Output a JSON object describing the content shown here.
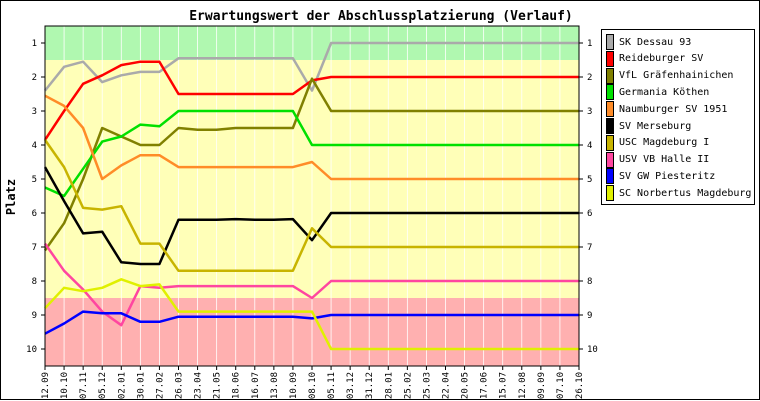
{
  "chart_data": {
    "type": "line",
    "title": "Erwartungswert der Abschlussplatzierung (Verlauf)",
    "ylabel": "Platz",
    "xlabel": "",
    "ylim": [
      0.5,
      10.5
    ],
    "y_reversed": true,
    "y_ticks": [
      "1",
      "2",
      "3",
      "4",
      "5",
      "6",
      "7",
      "8",
      "9",
      "10"
    ],
    "x": [
      "12.09",
      "10.10",
      "07.11",
      "05.12",
      "02.01",
      "30.01",
      "27.02",
      "26.03",
      "23.04",
      "21.05",
      "18.06",
      "16.07",
      "13.08",
      "10.09",
      "08.10",
      "05.11",
      "03.12",
      "31.12",
      "28.01",
      "25.02",
      "25.03",
      "22.04",
      "20.05",
      "17.06",
      "15.07",
      "12.08",
      "09.09",
      "07.10",
      "26.10"
    ],
    "bands": [
      {
        "from": 0.5,
        "to": 1.5,
        "color": "#b0f8b0"
      },
      {
        "from": 1.5,
        "to": 8.5,
        "color": "#ffffb8"
      },
      {
        "from": 8.5,
        "to": 10.5,
        "color": "#ffb0b0"
      }
    ],
    "legend_position": "right",
    "series": [
      {
        "name": "SK Dessau 93",
        "color": "#aaaaaa",
        "points": [
          [
            0,
            2.4
          ],
          [
            1,
            1.7
          ],
          [
            2,
            1.55
          ],
          [
            3,
            2.15
          ],
          [
            4,
            1.95
          ],
          [
            5,
            1.85
          ],
          [
            6,
            1.85
          ],
          [
            7,
            1.45
          ],
          [
            8,
            1.45
          ],
          [
            9,
            1.45
          ],
          [
            10,
            1.45
          ],
          [
            11,
            1.45
          ],
          [
            12,
            1.45
          ],
          [
            13,
            1.45
          ],
          [
            14,
            2.4
          ],
          [
            15,
            1.0
          ],
          [
            16,
            1.0
          ],
          [
            17,
            1.0
          ],
          [
            18,
            1.0
          ],
          [
            19,
            1.0
          ],
          [
            20,
            1.0
          ],
          [
            21,
            1.0
          ],
          [
            22,
            1.0
          ],
          [
            23,
            1.0
          ],
          [
            24,
            1.0
          ],
          [
            25,
            1.0
          ],
          [
            26,
            1.0
          ],
          [
            27,
            1.0
          ],
          [
            28,
            1.0
          ]
        ]
      },
      {
        "name": "Reideburger SV",
        "color": "#ff0000",
        "points": [
          [
            0,
            3.85
          ],
          [
            1,
            3.0
          ],
          [
            2,
            2.2
          ],
          [
            3,
            1.95
          ],
          [
            4,
            1.65
          ],
          [
            5,
            1.55
          ],
          [
            6,
            1.55
          ],
          [
            7,
            2.5
          ],
          [
            8,
            2.5
          ],
          [
            9,
            2.5
          ],
          [
            10,
            2.5
          ],
          [
            11,
            2.5
          ],
          [
            12,
            2.5
          ],
          [
            13,
            2.5
          ],
          [
            14,
            2.1
          ],
          [
            15,
            2.0
          ],
          [
            16,
            2.0
          ],
          [
            17,
            2.0
          ],
          [
            18,
            2.0
          ],
          [
            19,
            2.0
          ],
          [
            20,
            2.0
          ],
          [
            21,
            2.0
          ],
          [
            22,
            2.0
          ],
          [
            23,
            2.0
          ],
          [
            24,
            2.0
          ],
          [
            25,
            2.0
          ],
          [
            26,
            2.0
          ],
          [
            27,
            2.0
          ],
          [
            28,
            2.0
          ]
        ]
      },
      {
        "name": "VfL Gräfenhainichen",
        "color": "#808000",
        "points": [
          [
            0,
            7.1
          ],
          [
            1,
            6.3
          ],
          [
            2,
            5.0
          ],
          [
            3,
            3.5
          ],
          [
            4,
            3.75
          ],
          [
            5,
            4.0
          ],
          [
            6,
            4.0
          ],
          [
            7,
            3.5
          ],
          [
            8,
            3.55
          ],
          [
            9,
            3.55
          ],
          [
            10,
            3.5
          ],
          [
            11,
            3.5
          ],
          [
            12,
            3.5
          ],
          [
            13,
            3.5
          ],
          [
            14,
            2.05
          ],
          [
            15,
            3.0
          ],
          [
            16,
            3.0
          ],
          [
            17,
            3.0
          ],
          [
            18,
            3.0
          ],
          [
            19,
            3.0
          ],
          [
            20,
            3.0
          ],
          [
            21,
            3.0
          ],
          [
            22,
            3.0
          ],
          [
            23,
            3.0
          ],
          [
            24,
            3.0
          ],
          [
            25,
            3.0
          ],
          [
            26,
            3.0
          ],
          [
            27,
            3.0
          ],
          [
            28,
            3.0
          ]
        ]
      },
      {
        "name": "Germania Köthen",
        "color": "#00e000",
        "points": [
          [
            0,
            5.25
          ],
          [
            1,
            5.5
          ],
          [
            2,
            4.7
          ],
          [
            3,
            3.9
          ],
          [
            4,
            3.75
          ],
          [
            5,
            3.4
          ],
          [
            6,
            3.45
          ],
          [
            7,
            3.0
          ],
          [
            8,
            3.0
          ],
          [
            9,
            3.0
          ],
          [
            10,
            3.0
          ],
          [
            11,
            3.0
          ],
          [
            12,
            3.0
          ],
          [
            13,
            3.0
          ],
          [
            14,
            4.0
          ],
          [
            15,
            4.0
          ],
          [
            16,
            4.0
          ],
          [
            17,
            4.0
          ],
          [
            18,
            4.0
          ],
          [
            19,
            4.0
          ],
          [
            20,
            4.0
          ],
          [
            21,
            4.0
          ],
          [
            22,
            4.0
          ],
          [
            23,
            4.0
          ],
          [
            24,
            4.0
          ],
          [
            25,
            4.0
          ],
          [
            26,
            4.0
          ],
          [
            27,
            4.0
          ],
          [
            28,
            4.0
          ]
        ]
      },
      {
        "name": "Naumburger SV 1951",
        "color": "#ff8c28",
        "points": [
          [
            0,
            2.55
          ],
          [
            1,
            2.85
          ],
          [
            2,
            3.5
          ],
          [
            3,
            5.0
          ],
          [
            4,
            4.6
          ],
          [
            5,
            4.3
          ],
          [
            6,
            4.3
          ],
          [
            7,
            4.65
          ],
          [
            8,
            4.65
          ],
          [
            9,
            4.65
          ],
          [
            10,
            4.65
          ],
          [
            11,
            4.65
          ],
          [
            12,
            4.65
          ],
          [
            13,
            4.65
          ],
          [
            14,
            4.5
          ],
          [
            15,
            5.0
          ],
          [
            16,
            5.0
          ],
          [
            17,
            5.0
          ],
          [
            18,
            5.0
          ],
          [
            19,
            5.0
          ],
          [
            20,
            5.0
          ],
          [
            21,
            5.0
          ],
          [
            22,
            5.0
          ],
          [
            23,
            5.0
          ],
          [
            24,
            5.0
          ],
          [
            25,
            5.0
          ],
          [
            26,
            5.0
          ],
          [
            27,
            5.0
          ],
          [
            28,
            5.0
          ]
        ]
      },
      {
        "name": "SV Merseburg",
        "color": "#000000",
        "points": [
          [
            0,
            4.65
          ],
          [
            1,
            5.65
          ],
          [
            2,
            6.6
          ],
          [
            3,
            6.55
          ],
          [
            4,
            7.45
          ],
          [
            5,
            7.5
          ],
          [
            6,
            7.5
          ],
          [
            7,
            6.2
          ],
          [
            8,
            6.2
          ],
          [
            9,
            6.2
          ],
          [
            10,
            6.18
          ],
          [
            11,
            6.2
          ],
          [
            12,
            6.2
          ],
          [
            13,
            6.18
          ],
          [
            14,
            6.8
          ],
          [
            15,
            6.0
          ],
          [
            16,
            6.0
          ],
          [
            17,
            6.0
          ],
          [
            18,
            6.0
          ],
          [
            19,
            6.0
          ],
          [
            20,
            6.0
          ],
          [
            21,
            6.0
          ],
          [
            22,
            6.0
          ],
          [
            23,
            6.0
          ],
          [
            24,
            6.0
          ],
          [
            25,
            6.0
          ],
          [
            26,
            6.0
          ],
          [
            27,
            6.0
          ],
          [
            28,
            6.0
          ]
        ]
      },
      {
        "name": "USC Magdeburg I",
        "color": "#c8b400",
        "points": [
          [
            0,
            3.85
          ],
          [
            1,
            4.65
          ],
          [
            2,
            5.85
          ],
          [
            3,
            5.9
          ],
          [
            4,
            5.8
          ],
          [
            5,
            6.9
          ],
          [
            6,
            6.9
          ],
          [
            7,
            7.7
          ],
          [
            8,
            7.7
          ],
          [
            9,
            7.7
          ],
          [
            10,
            7.7
          ],
          [
            11,
            7.7
          ],
          [
            12,
            7.7
          ],
          [
            13,
            7.7
          ],
          [
            14,
            6.45
          ],
          [
            15,
            7.0
          ],
          [
            16,
            7.0
          ],
          [
            17,
            7.0
          ],
          [
            18,
            7.0
          ],
          [
            19,
            7.0
          ],
          [
            20,
            7.0
          ],
          [
            21,
            7.0
          ],
          [
            22,
            7.0
          ],
          [
            23,
            7.0
          ],
          [
            24,
            7.0
          ],
          [
            25,
            7.0
          ],
          [
            26,
            7.0
          ],
          [
            27,
            7.0
          ],
          [
            28,
            7.0
          ]
        ]
      },
      {
        "name": "USV VB Halle II",
        "color": "#ff46a0",
        "points": [
          [
            0,
            6.9
          ],
          [
            1,
            7.7
          ],
          [
            2,
            8.25
          ],
          [
            3,
            8.9
          ],
          [
            4,
            9.3
          ],
          [
            5,
            8.15
          ],
          [
            6,
            8.2
          ],
          [
            7,
            8.15
          ],
          [
            8,
            8.15
          ],
          [
            9,
            8.15
          ],
          [
            10,
            8.15
          ],
          [
            11,
            8.15
          ],
          [
            12,
            8.15
          ],
          [
            13,
            8.15
          ],
          [
            14,
            8.5
          ],
          [
            15,
            8.0
          ],
          [
            16,
            8.0
          ],
          [
            17,
            8.0
          ],
          [
            18,
            8.0
          ],
          [
            19,
            8.0
          ],
          [
            20,
            8.0
          ],
          [
            21,
            8.0
          ],
          [
            22,
            8.0
          ],
          [
            23,
            8.0
          ],
          [
            24,
            8.0
          ],
          [
            25,
            8.0
          ],
          [
            26,
            8.0
          ],
          [
            27,
            8.0
          ],
          [
            28,
            8.0
          ]
        ]
      },
      {
        "name": "SV GW Piesteritz",
        "color": "#0000ff",
        "points": [
          [
            0,
            9.55
          ],
          [
            1,
            9.25
          ],
          [
            2,
            8.9
          ],
          [
            3,
            8.95
          ],
          [
            4,
            8.95
          ],
          [
            5,
            9.2
          ],
          [
            6,
            9.2
          ],
          [
            7,
            9.05
          ],
          [
            8,
            9.05
          ],
          [
            9,
            9.05
          ],
          [
            10,
            9.05
          ],
          [
            11,
            9.05
          ],
          [
            12,
            9.05
          ],
          [
            13,
            9.05
          ],
          [
            14,
            9.1
          ],
          [
            15,
            9.0
          ],
          [
            16,
            9.0
          ],
          [
            17,
            9.0
          ],
          [
            18,
            9.0
          ],
          [
            19,
            9.0
          ],
          [
            20,
            9.0
          ],
          [
            21,
            9.0
          ],
          [
            22,
            9.0
          ],
          [
            23,
            9.0
          ],
          [
            24,
            9.0
          ],
          [
            25,
            9.0
          ],
          [
            26,
            9.0
          ],
          [
            27,
            9.0
          ],
          [
            28,
            9.0
          ]
        ]
      },
      {
        "name": "SC Norbertus Magdeburg",
        "color": "#e0f000",
        "points": [
          [
            0,
            8.8
          ],
          [
            1,
            8.2
          ],
          [
            2,
            8.3
          ],
          [
            3,
            8.2
          ],
          [
            4,
            7.95
          ],
          [
            5,
            8.15
          ],
          [
            6,
            8.1
          ],
          [
            7,
            8.9
          ],
          [
            8,
            8.9
          ],
          [
            9,
            8.9
          ],
          [
            10,
            8.9
          ],
          [
            11,
            8.9
          ],
          [
            12,
            8.9
          ],
          [
            13,
            8.9
          ],
          [
            14,
            8.9
          ],
          [
            15,
            10.0
          ],
          [
            16,
            10.0
          ],
          [
            17,
            10.0
          ],
          [
            18,
            10.0
          ],
          [
            19,
            10.0
          ],
          [
            20,
            10.0
          ],
          [
            21,
            10.0
          ],
          [
            22,
            10.0
          ],
          [
            23,
            10.0
          ],
          [
            24,
            10.0
          ],
          [
            25,
            10.0
          ],
          [
            26,
            10.0
          ],
          [
            27,
            10.0
          ],
          [
            28,
            10.0
          ]
        ]
      }
    ]
  }
}
